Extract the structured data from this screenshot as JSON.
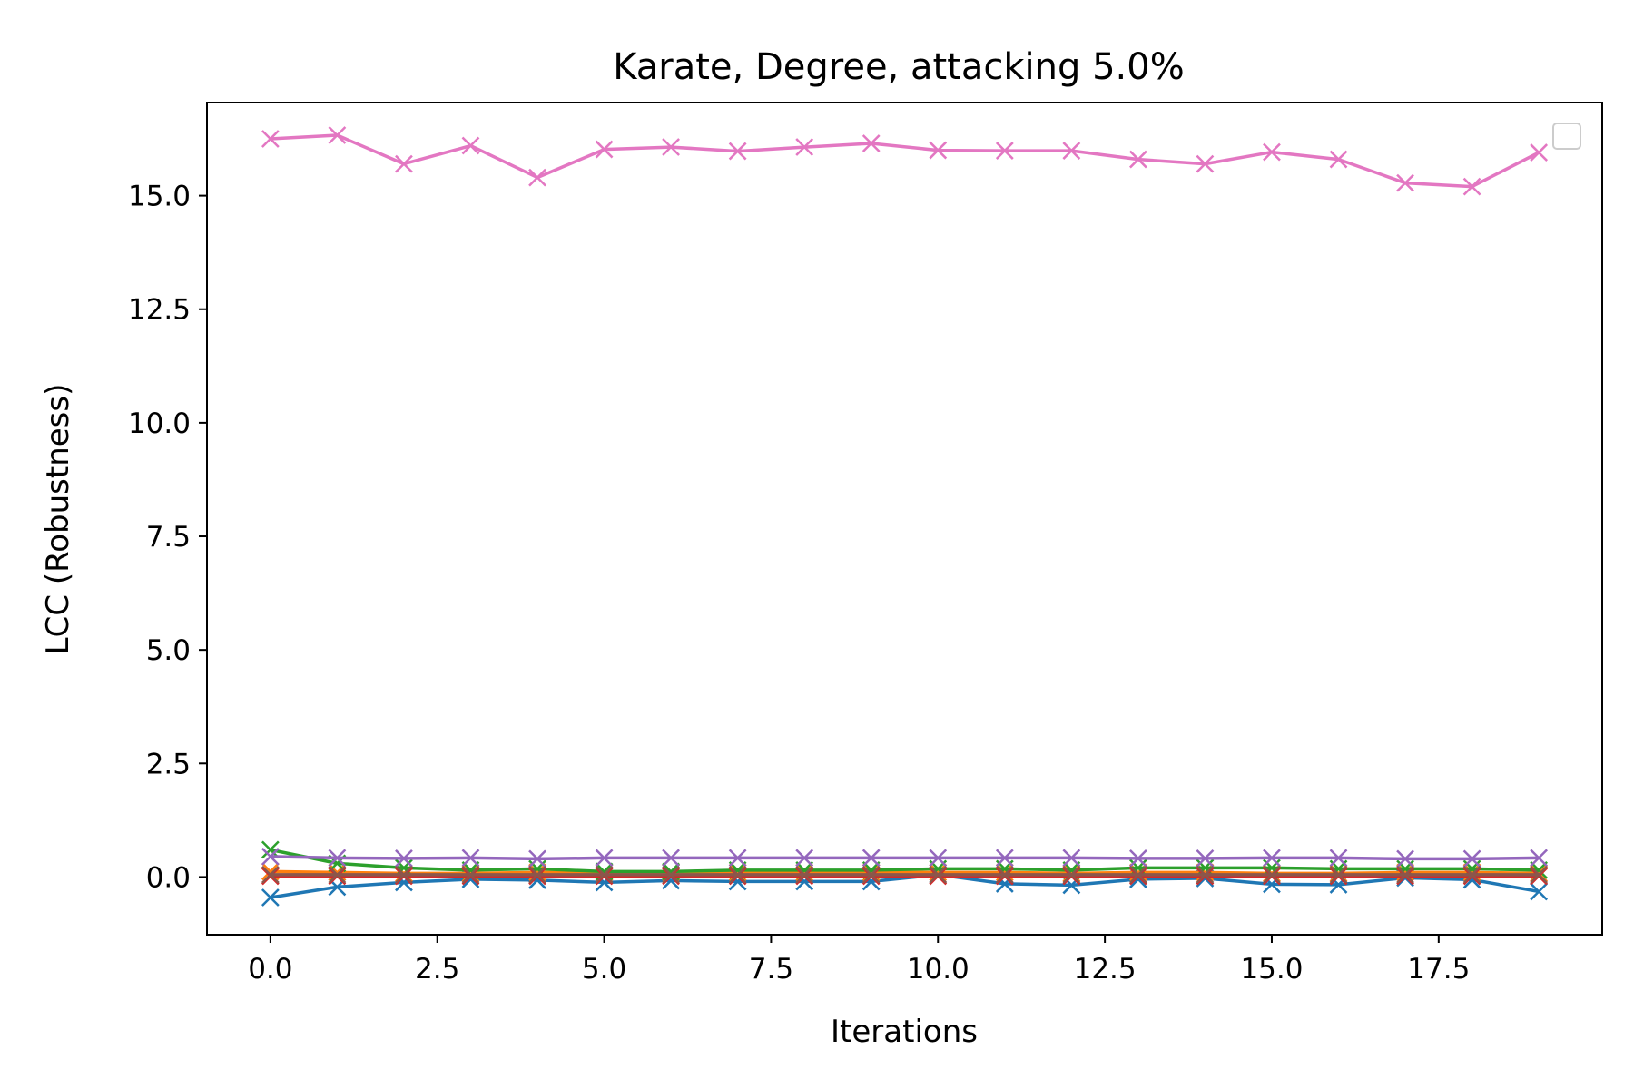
{
  "chart_data": {
    "type": "line",
    "title": "Karate, Degree, attacking 5.0%",
    "xlabel": "Iterations",
    "ylabel": "LCC (Robustness)",
    "xlim": [
      -0.95,
      19.95
    ],
    "ylim": [
      -1.27,
      17.05
    ],
    "x_ticks": [
      0,
      2.5,
      5,
      7.5,
      10,
      12.5,
      15,
      17.5
    ],
    "x_tick_labels": [
      "0.0",
      "2.5",
      "5.0",
      "7.5",
      "10.0",
      "12.5",
      "15.0",
      "17.5"
    ],
    "y_ticks": [
      0,
      2.5,
      5,
      7.5,
      10,
      12.5,
      15
    ],
    "y_tick_labels": [
      "0.0",
      "2.5",
      "5.0",
      "7.5",
      "10.0",
      "12.5",
      "15.0"
    ],
    "grid": false,
    "legend": "top-right, empty",
    "marker": "x",
    "x": [
      0,
      1,
      2,
      3,
      4,
      5,
      6,
      7,
      8,
      9,
      10,
      11,
      12,
      13,
      14,
      15,
      16,
      17,
      18,
      19
    ],
    "series": [
      {
        "color": "#1f77b4",
        "values": [
          -0.45,
          -0.22,
          -0.12,
          -0.05,
          -0.07,
          -0.12,
          -0.08,
          -0.1,
          -0.1,
          -0.1,
          0.05,
          -0.15,
          -0.18,
          -0.05,
          -0.03,
          -0.16,
          -0.17,
          -0.02,
          -0.06,
          -0.32
        ]
      },
      {
        "color": "#ff7f0e",
        "values": [
          0.12,
          0.1,
          0.08,
          0.08,
          0.1,
          0.1,
          0.1,
          0.1,
          0.1,
          0.1,
          0.1,
          0.1,
          0.08,
          0.1,
          0.1,
          0.08,
          0.08,
          0.1,
          0.1,
          0.08
        ]
      },
      {
        "color": "#2ca02c",
        "values": [
          0.6,
          0.3,
          0.2,
          0.15,
          0.18,
          0.12,
          0.12,
          0.15,
          0.15,
          0.15,
          0.18,
          0.18,
          0.15,
          0.2,
          0.2,
          0.2,
          0.18,
          0.18,
          0.18,
          0.15
        ]
      },
      {
        "color": "#d62728",
        "values": [
          0.02,
          0.02,
          0.02,
          0.02,
          0.02,
          0.02,
          0.02,
          0.02,
          0.02,
          0.02,
          0.02,
          0.02,
          0.02,
          0.02,
          0.02,
          0.02,
          0.02,
          0.02,
          0.02,
          0.02
        ]
      },
      {
        "color": "#9467bd",
        "values": [
          0.45,
          0.42,
          0.41,
          0.42,
          0.4,
          0.42,
          0.42,
          0.42,
          0.42,
          0.42,
          0.42,
          0.42,
          0.42,
          0.41,
          0.41,
          0.42,
          0.42,
          0.4,
          0.4,
          0.42
        ]
      },
      {
        "color": "#8c564b",
        "values": [
          0.05,
          0.05,
          0.05,
          0.05,
          0.05,
          0.05,
          0.05,
          0.05,
          0.05,
          0.05,
          0.05,
          0.05,
          0.05,
          0.05,
          0.05,
          0.05,
          0.05,
          0.05,
          0.05,
          0.05
        ]
      },
      {
        "color": "#e377c2",
        "values": [
          16.25,
          16.33,
          15.7,
          16.1,
          15.4,
          16.02,
          16.07,
          15.98,
          16.07,
          16.15,
          16.0,
          15.99,
          15.99,
          15.8,
          15.7,
          15.96,
          15.8,
          15.28,
          15.2,
          15.95
        ]
      }
    ]
  }
}
